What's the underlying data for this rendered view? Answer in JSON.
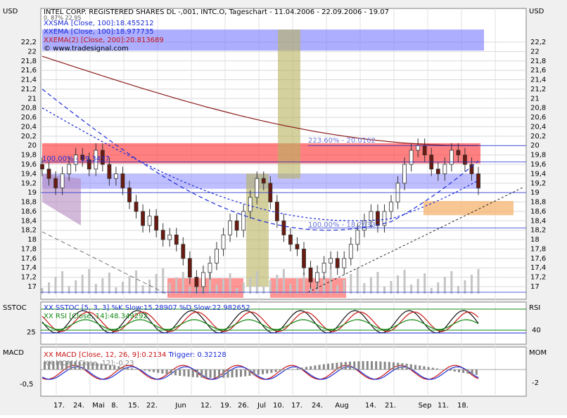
{
  "header": {
    "left_unit": "USD",
    "right_unit": "USD",
    "title": "INTEL CORP. REGISTERED SHARES DL -,001, INTC.O, Tageschart - 11.04.2006 - 22.09.2006 - 19.07",
    "subtitle_partial": "0, 87% 22.95"
  },
  "legend": [
    {
      "label": "XXSMA [Close, 100]:18.455212",
      "color": "#1a2bd6"
    },
    {
      "label": "XXEMA [Close, 100]:18.977735",
      "color": "#1a2bd6"
    },
    {
      "label": "XXEMA(2) [Close, 200]:20.813689",
      "color": "#c81414"
    },
    {
      "label": "© www.tradesignal.com",
      "color": "#000000"
    }
  ],
  "annotations": {
    "fib_upper": "223.60% - 20.0162",
    "fib_lower": "100.00% - 18.2633",
    "fib_left": "100.00% - 19.3437"
  },
  "price_axis": {
    "ticks": [
      "22,2",
      "22",
      "21,8",
      "21,6",
      "21,4",
      "21,2",
      "21",
      "20,8",
      "20,6",
      "20,4",
      "20,2",
      "20",
      "19,8",
      "19,6",
      "19,4",
      "19,2",
      "19",
      "18,8",
      "18,6",
      "18,4",
      "18,2",
      "18",
      "17,8",
      "17,6",
      "17,4",
      "17,2",
      "17"
    ]
  },
  "sstoc_panel": {
    "left_title": "SSTOC",
    "right_title": "RSI",
    "legend1": "XX SSTOC [5, 3, 3] %K Slow:15.28907 %D Slow:22.982652",
    "legend2": "XX RSI [Close, 14]:48.349292",
    "left_tick": "25",
    "right_tick": "40"
  },
  "macd_panel": {
    "left_title": "MACD",
    "right_title": "MOM",
    "legend1_prefix": "XX MACD [Close, 12, 26, 9]:0.2134",
    "legend1_suffix": "Trigger: 0.32128",
    "legend2": "XX MOM [Close, 12]:-0.23",
    "left_tick": "-0,5",
    "right_tick": "-2"
  },
  "x_axis": {
    "labels": [
      "17.",
      "24.",
      "Mai",
      "8.",
      "15.",
      "22.",
      "Jun",
      "12.",
      "19.",
      "26.",
      "Jul",
      "10.",
      "17.",
      "24.",
      "Aug",
      "14.",
      "21.",
      "Sep",
      "11.",
      "18."
    ]
  },
  "chart_data": {
    "type": "candlestick",
    "title": "INTEL CORP. REGISTERED SHARES DL -,001, INTC.O, Tageschart - 11.04.2006 - 22.09.2006 - 19.07",
    "y_unit": "USD",
    "ylim": [
      16.8,
      22.4
    ],
    "closes": [
      19.5,
      19.3,
      19.1,
      19.4,
      19.6,
      19.8,
      19.7,
      19.5,
      19.9,
      19.6,
      19.3,
      19.4,
      19.1,
      18.8,
      18.6,
      18.3,
      18.5,
      18.2,
      18.0,
      18.1,
      17.9,
      17.6,
      17.2,
      17.0,
      17.3,
      17.5,
      17.8,
      18.1,
      18.4,
      18.2,
      18.6,
      18.9,
      19.3,
      19.2,
      18.8,
      18.4,
      18.1,
      17.9,
      17.8,
      17.4,
      17.1,
      17.3,
      17.5,
      17.6,
      17.4,
      17.6,
      17.9,
      18.2,
      18.4,
      18.6,
      18.3,
      18.6,
      18.8,
      19.2,
      19.6,
      19.9,
      20.0,
      19.8,
      19.5,
      19.4,
      19.6,
      19.9,
      19.8,
      19.6,
      19.4,
      19.1
    ],
    "sma100": 18.455212,
    "ema100": 18.977735,
    "ema200": 20.813689,
    "sstoc": {
      "k_slow": 15.28907,
      "d_slow": 22.982652
    },
    "rsi": 48.349292,
    "macd": 0.2134,
    "trigger": 0.32128,
    "momentum": -0.23,
    "x_tick_labels": [
      "17.",
      "24.",
      "Mai",
      "8.",
      "15.",
      "22.",
      "Jun",
      "12.",
      "19.",
      "26.",
      "Jul",
      "10.",
      "17.",
      "24.",
      "Aug",
      "14.",
      "21.",
      "Sep",
      "11.",
      "18."
    ]
  }
}
